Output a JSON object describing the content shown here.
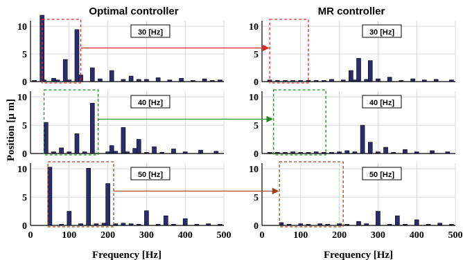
{
  "titles": {
    "left": "Optimal controller",
    "right": "MR controller"
  },
  "axes": {
    "xlabel": "Frequency [Hz]",
    "ylabel": "Position  [μ m]",
    "xlim": [
      0,
      500
    ],
    "ylim": [
      0,
      11
    ],
    "xticks": [
      0,
      100,
      200,
      300,
      400,
      500
    ],
    "yticks": [
      0,
      5,
      10
    ]
  },
  "colors": {
    "bar_fill": "#2b2b6e",
    "grid": "#d8d8d8",
    "arrow_30": "#e8201a",
    "arrow_40": "#1a8a1a",
    "arrow_50": "#a0401a"
  },
  "chart_data": [
    {
      "type": "bar",
      "row": 0,
      "column": "left",
      "controller": "Optimal controller",
      "frequency_label": "30 [Hz]",
      "x": [
        10,
        30,
        35,
        60,
        70,
        90,
        100,
        120,
        130,
        160,
        180,
        210,
        240,
        260,
        280,
        300,
        330,
        360,
        390,
        420,
        450,
        470,
        490
      ],
      "values": [
        0.2,
        12.0,
        0.3,
        0.6,
        0.3,
        4.0,
        0.3,
        9.4,
        1.2,
        2.5,
        0.5,
        2.0,
        0.4,
        1.0,
        0.4,
        0.4,
        0.7,
        0.3,
        0.6,
        0.2,
        0.5,
        0.2,
        0.3
      ],
      "highlight_box": [
        30,
        130
      ]
    },
    {
      "type": "bar",
      "row": 0,
      "column": "right",
      "controller": "MR controller",
      "frequency_label": "30 [Hz]",
      "x": [
        20,
        40,
        60,
        80,
        100,
        120,
        140,
        160,
        180,
        210,
        230,
        240,
        250,
        270,
        280,
        300,
        330,
        360,
        390,
        420,
        450,
        490
      ],
      "values": [
        0.3,
        0.2,
        0.2,
        0.2,
        0.2,
        0.2,
        0.2,
        0.2,
        0.4,
        0.3,
        2.0,
        0.3,
        4.2,
        0.4,
        3.8,
        0.5,
        0.8,
        0.2,
        0.5,
        0.3,
        0.4,
        0.3
      ],
      "highlight_box": [
        20,
        120
      ]
    },
    {
      "type": "bar",
      "row": 1,
      "column": "left",
      "controller": "Optimal controller",
      "frequency_label": "40 [Hz]",
      "x": [
        40,
        60,
        80,
        100,
        120,
        140,
        160,
        200,
        210,
        220,
        240,
        250,
        270,
        280,
        300,
        320,
        340,
        370,
        400,
        440,
        480
      ],
      "values": [
        5.5,
        0.3,
        1.0,
        0.3,
        3.5,
        0.3,
        8.9,
        0.3,
        1.4,
        0.4,
        4.6,
        0.3,
        0.9,
        2.5,
        0.2,
        1.2,
        0.2,
        0.8,
        0.3,
        0.6,
        0.4
      ],
      "highlight_box": [
        35,
        175
      ]
    },
    {
      "type": "bar",
      "row": 1,
      "column": "right",
      "controller": "MR controller",
      "frequency_label": "40 [Hz]",
      "x": [
        20,
        40,
        60,
        80,
        100,
        120,
        140,
        160,
        180,
        200,
        220,
        240,
        260,
        280,
        300,
        320,
        340,
        370,
        400,
        440,
        480
      ],
      "values": [
        0.2,
        0.2,
        0.2,
        0.3,
        0.2,
        0.2,
        0.3,
        0.2,
        0.2,
        0.3,
        0.5,
        0.3,
        5.0,
        2.0,
        0.3,
        1.1,
        0.2,
        0.7,
        0.3,
        0.5,
        0.3
      ],
      "highlight_box": [
        30,
        165
      ]
    },
    {
      "type": "bar",
      "row": 2,
      "column": "left",
      "controller": "Optimal controller",
      "frequency_label": "50 [Hz]",
      "x": [
        50,
        80,
        100,
        130,
        150,
        170,
        190,
        200,
        220,
        240,
        260,
        280,
        300,
        330,
        350,
        370,
        400,
        430,
        460,
        490
      ],
      "values": [
        10.3,
        0.2,
        2.5,
        0.3,
        10.1,
        0.3,
        0.4,
        7.4,
        0.3,
        0.4,
        0.3,
        0.2,
        2.6,
        0.2,
        1.7,
        0.2,
        1.2,
        0.2,
        0.3,
        0.2
      ],
      "highlight_box": [
        45,
        215
      ]
    },
    {
      "type": "bar",
      "row": 2,
      "column": "right",
      "controller": "MR controller",
      "frequency_label": "50 [Hz]",
      "x": [
        50,
        70,
        100,
        120,
        150,
        170,
        200,
        220,
        250,
        270,
        300,
        330,
        350,
        370,
        400,
        430,
        460,
        490
      ],
      "values": [
        0.5,
        0.2,
        0.3,
        0.2,
        0.3,
        0.2,
        0.3,
        0.2,
        0.7,
        0.3,
        2.5,
        0.2,
        1.7,
        0.2,
        1.0,
        0.2,
        0.4,
        0.2
      ],
      "highlight_box": [
        45,
        210
      ]
    }
  ]
}
